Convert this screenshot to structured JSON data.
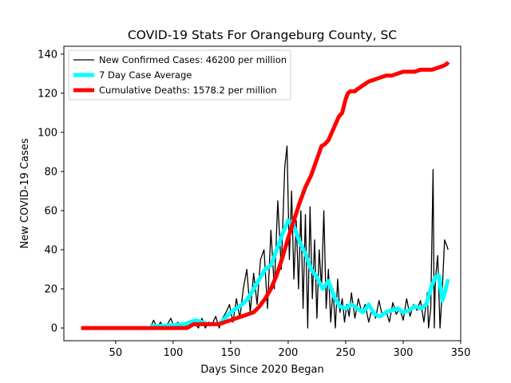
{
  "chart_data": {
    "type": "line",
    "title": "COVID-19 Stats For Orangeburg County, SC",
    "xlabel": "Days Since 2020 Began",
    "ylabel": "New COVID-19 Cases",
    "xlim": [
      5,
      350
    ],
    "ylim": [
      -6.5,
      144
    ],
    "xticks": [
      50,
      100,
      150,
      200,
      250,
      300,
      350
    ],
    "yticks": [
      0,
      20,
      40,
      60,
      80,
      100,
      120,
      140
    ],
    "grid": false,
    "legend_position": "top-left",
    "series": [
      {
        "name": "New Confirmed Cases: 46200 per million",
        "color": "#000000",
        "x": [
          80,
          83,
          86,
          89,
          92,
          95,
          98,
          101,
          104,
          107,
          110,
          113,
          116,
          119,
          122,
          125,
          128,
          131,
          134,
          137,
          140,
          143,
          146,
          149,
          152,
          155,
          158,
          161,
          164,
          167,
          170,
          173,
          176,
          179,
          182,
          185,
          188,
          191,
          194,
          197,
          199,
          201,
          203,
          205,
          207,
          209,
          211,
          213,
          215,
          217,
          219,
          221,
          223,
          225,
          227,
          229,
          231,
          233,
          235,
          237,
          239,
          241,
          243,
          245,
          247,
          249,
          251,
          253,
          255,
          258,
          261,
          264,
          267,
          270,
          273,
          276,
          279,
          282,
          285,
          288,
          291,
          294,
          297,
          300,
          303,
          306,
          309,
          312,
          315,
          318,
          321,
          322,
          324,
          326,
          327,
          328,
          330,
          332,
          334,
          336,
          338,
          339
        ],
        "y": [
          0,
          4,
          0,
          3,
          0,
          2,
          5,
          0,
          3,
          0,
          2,
          0,
          4,
          2,
          0,
          5,
          0,
          3,
          2,
          6,
          0,
          5,
          8,
          12,
          3,
          15,
          5,
          20,
          30,
          8,
          28,
          12,
          35,
          40,
          10,
          50,
          20,
          65,
          30,
          82,
          93,
          35,
          70,
          25,
          55,
          20,
          60,
          10,
          58,
          0,
          62,
          15,
          45,
          5,
          40,
          20,
          60,
          10,
          30,
          3,
          20,
          0,
          25,
          8,
          15,
          3,
          12,
          6,
          18,
          5,
          15,
          8,
          12,
          3,
          10,
          5,
          14,
          6,
          9,
          3,
          13,
          7,
          10,
          4,
          15,
          6,
          12,
          9,
          14,
          3,
          18,
          0,
          10,
          81,
          0,
          25,
          37,
          0,
          20,
          45,
          42,
          40
        ]
      },
      {
        "name": "7 Day Case Average",
        "color": "#00ffff",
        "x": [
          80,
          90,
          100,
          110,
          115,
          120,
          125,
          130,
          135,
          140,
          145,
          150,
          155,
          160,
          165,
          170,
          175,
          180,
          185,
          190,
          195,
          200,
          205,
          210,
          215,
          220,
          225,
          230,
          235,
          240,
          245,
          250,
          255,
          260,
          265,
          270,
          275,
          280,
          285,
          290,
          295,
          300,
          305,
          310,
          315,
          320,
          325,
          328,
          331,
          334,
          337,
          339
        ],
        "y": [
          1,
          1,
          1.5,
          2,
          3,
          4,
          3,
          2,
          2,
          2,
          5,
          8,
          10,
          12,
          15,
          20,
          25,
          30,
          32,
          40,
          48,
          55,
          52,
          44,
          38,
          30,
          26,
          20,
          24,
          16,
          11,
          10,
          12,
          10,
          8,
          12,
          7,
          6,
          8,
          9,
          10,
          8,
          9,
          11,
          10,
          12,
          22,
          26,
          27,
          14,
          20,
          25
        ]
      },
      {
        "name": "Cumulative Deaths: 1578.2 per million",
        "color": "#ff0000",
        "x": [
          20,
          40,
          60,
          80,
          100,
          110,
          112,
          115,
          118,
          121,
          125,
          130,
          140,
          145,
          150,
          155,
          160,
          165,
          170,
          175,
          180,
          185,
          190,
          195,
          200,
          205,
          210,
          215,
          220,
          223,
          226,
          229,
          232,
          235,
          238,
          241,
          244,
          247,
          250,
          252,
          254,
          256,
          258,
          260,
          265,
          270,
          275,
          280,
          285,
          290,
          295,
          300,
          305,
          310,
          315,
          320,
          325,
          330,
          335,
          338,
          339
        ],
        "y": [
          0,
          0,
          0,
          0,
          0,
          0,
          0,
          1,
          2,
          2,
          2,
          2,
          2,
          3,
          4,
          5,
          6,
          7,
          8,
          11,
          15,
          20,
          27,
          36,
          46,
          55,
          64,
          72,
          78,
          83,
          88,
          93,
          94,
          96,
          100,
          104,
          108,
          110,
          117,
          120,
          121,
          121,
          121,
          122,
          124,
          126,
          127,
          128,
          129,
          129,
          130,
          131,
          131,
          131,
          132,
          132,
          132,
          133,
          134,
          135,
          136
        ]
      }
    ]
  }
}
